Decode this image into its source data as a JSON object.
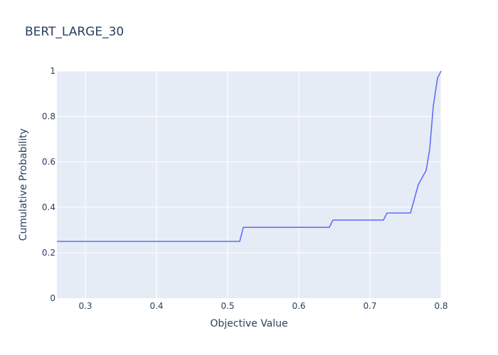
{
  "chart_data": {
    "type": "line",
    "title": "BERT_LARGE_30",
    "xlabel": "Objective Value",
    "ylabel": "Cumulative Probability",
    "xlim": [
      0.26,
      0.8
    ],
    "ylim": [
      0,
      1
    ],
    "x_ticks": [
      0.3,
      0.4,
      0.5,
      0.6,
      0.7,
      0.8
    ],
    "x_tick_labels": [
      "0.3",
      "0.4",
      "0.5",
      "0.6",
      "0.7",
      "0.8"
    ],
    "y_ticks": [
      0,
      0.2,
      0.4,
      0.6,
      0.8,
      1
    ],
    "y_tick_labels": [
      "0",
      "0.2",
      "0.4",
      "0.6",
      "0.8",
      "1"
    ],
    "grid": true,
    "colors": {
      "line": "#636efa",
      "plot_bg": "#e5ecf6",
      "grid": "#ffffff",
      "text": "#2a3f5f"
    },
    "series": [
      {
        "x": [
          0.26,
          0.517,
          0.522,
          0.643,
          0.648,
          0.719,
          0.724,
          0.757,
          0.768,
          0.779,
          0.784,
          0.789,
          0.795,
          0.8
        ],
        "y": [
          0.25,
          0.25,
          0.312,
          0.312,
          0.344,
          0.344,
          0.375,
          0.375,
          0.5,
          0.562,
          0.656,
          0.844,
          0.969,
          1.0
        ]
      }
    ]
  }
}
